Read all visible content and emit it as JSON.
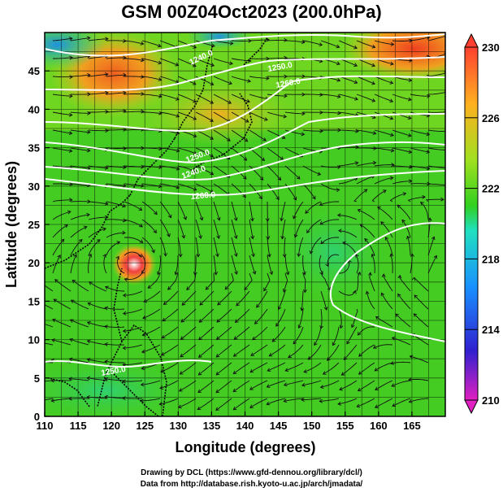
{
  "title": "GSM 00Z04Oct2023 (200.0hPa)",
  "x_axis": {
    "label": "Longitude (degrees)",
    "ticks": [
      "110",
      "115",
      "120",
      "125",
      "130",
      "135",
      "140",
      "145",
      "150",
      "155",
      "160",
      "165"
    ]
  },
  "y_axis": {
    "label": "Latitude  (degrees)",
    "ticks": [
      "0",
      "5",
      "10",
      "15",
      "20",
      "25",
      "30",
      "35",
      "40",
      "45"
    ]
  },
  "colorbar": {
    "ticks": [
      "210",
      "214",
      "218",
      "222",
      "226",
      "230"
    ],
    "colors": [
      "#e020c0",
      "#3020d0",
      "#1890ff",
      "#20e0c0",
      "#30d020",
      "#a0e020",
      "#ffb020",
      "#ff4030"
    ]
  },
  "contour_labels": [
    "1240.0",
    "1250.0",
    "1260.0",
    "1240.0",
    "1250.0",
    "1260.0",
    "1250.0"
  ],
  "credits": {
    "line1": "Drawing by DCL (https://www.gfd-dennou.org/library/dcl/)",
    "line2": "Data from http://database.rish.kyoto-u.ac.jp/arch/jmadata/"
  },
  "field_colors": {
    "base": "#4ad020",
    "warm": "#e89020",
    "hot": "#f04020",
    "cool": "#20c8a0",
    "cold": "#2080e0"
  }
}
